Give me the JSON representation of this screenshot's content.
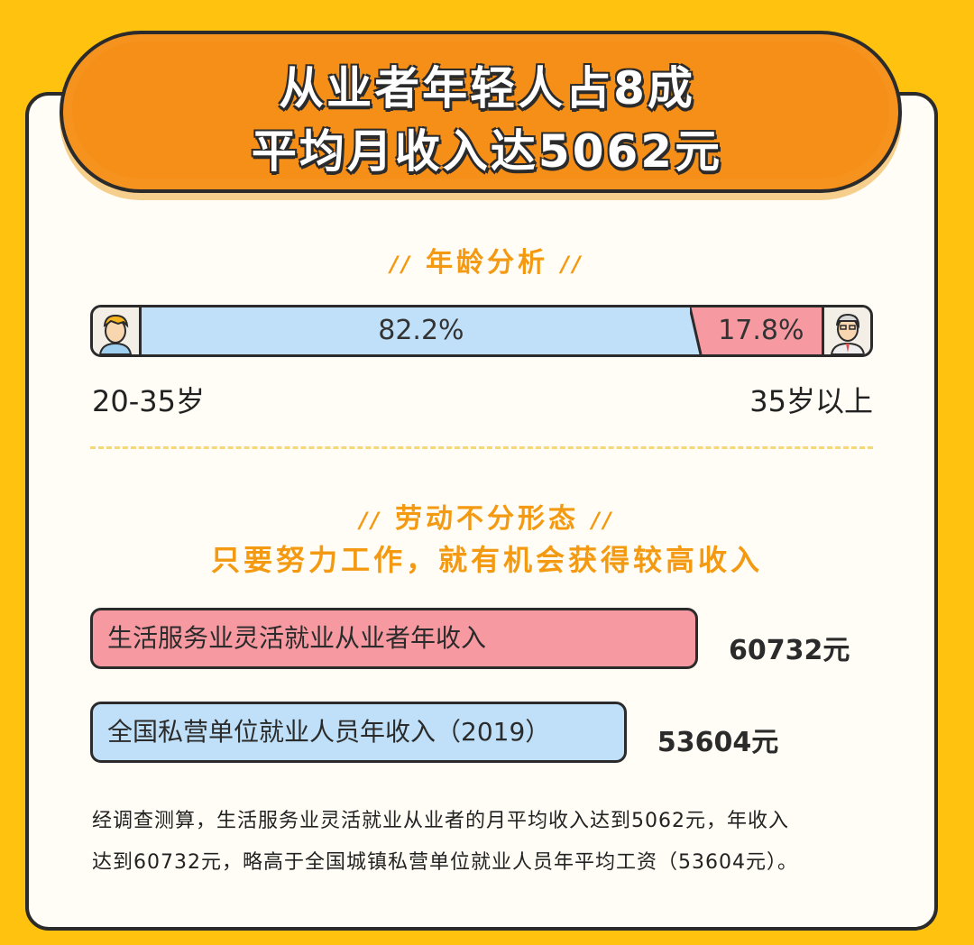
{
  "header": {
    "title_line1": "从业者年轻人占8成",
    "title_line2": "平均月收入达5062元"
  },
  "sections": {
    "age_heading": "年龄分析",
    "income_heading": "劳动不分形态",
    "income_subheading": "只要努力工作，就有机会获得较高收入",
    "slashes": "//"
  },
  "colors": {
    "background": "#ffc20e",
    "banner": "#f6931e",
    "accent_text": "#f39a12",
    "blue_bar": "#bfe0f8",
    "pink_bar": "#f799a1"
  },
  "chart_data": [
    {
      "type": "bar",
      "categories": [
        "20-35岁",
        "35岁以上"
      ],
      "values": [
        82.2,
        17.8
      ],
      "value_labels": [
        "82.2%",
        "17.8%"
      ],
      "icons": [
        "young-person-icon",
        "older-person-icon"
      ],
      "stacked": true
    },
    {
      "type": "bar",
      "orientation": "horizontal",
      "categories": [
        "生活服务业灵活就业从业者年收入",
        "全国私营单位就业人员年收入（2019）"
      ],
      "values": [
        60732,
        53604
      ],
      "value_labels": [
        "60732元",
        "53604元"
      ],
      "colors": [
        "#f799a1",
        "#bfe0f8"
      ]
    }
  ],
  "footnote": {
    "line1": "经调查测算，生活服务业灵活就业从业者的月平均收入达到5062元，年收入",
    "line2": "达到60732元，略高于全国城镇私营单位就业人员年平均工资（53604元）。"
  }
}
